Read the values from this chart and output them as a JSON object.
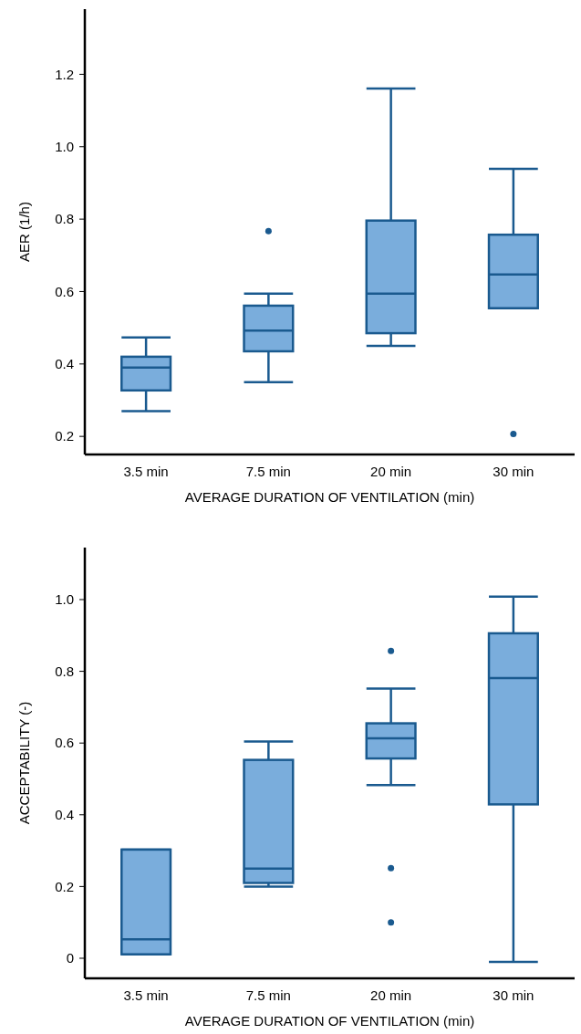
{
  "chart_data": [
    {
      "type": "box",
      "xlabel": "AVERAGE DURATION OF VENTILATION  (min)",
      "ylabel": "AER (1/h)",
      "categories": [
        "3.5 min",
        "7.5 min",
        "20 min",
        "30 min"
      ],
      "color": "#7aaddc",
      "ylim": [
        0.15,
        1.38
      ],
      "yticks": [
        {
          "value": 0.2,
          "label": "0.2"
        },
        {
          "value": 0.4,
          "label": "0.4"
        },
        {
          "value": 0.6,
          "label": "0.6"
        },
        {
          "value": 0.8,
          "label": "0.8"
        },
        {
          "value": 1.0,
          "label": "1.0"
        },
        {
          "value": 1.2,
          "label": "1.2"
        }
      ],
      "boxes": [
        {
          "low": 0.27,
          "q1": 0.327,
          "median": 0.39,
          "q3": 0.42,
          "high": 0.473
        },
        {
          "low": 0.35,
          "q1": 0.435,
          "median": 0.492,
          "q3": 0.561,
          "high": 0.594,
          "outliers": [
            0.767
          ]
        },
        {
          "low": 0.45,
          "q1": 0.485,
          "median": 0.594,
          "q3": 0.796,
          "high": 1.161
        },
        {
          "low": 0.554,
          "q1": 0.554,
          "median": 0.647,
          "q3": 0.757,
          "high": 0.939,
          "outliers": [
            0.207
          ]
        }
      ]
    },
    {
      "type": "box",
      "xlabel": "AVERAGE DURATION OF VENTILATION  (min)",
      "ylabel": "ACCEPTABILITY  (-)",
      "categories": [
        "3.5 min",
        "7.5 min",
        "20 min",
        "30 min"
      ],
      "color": "#7aaddc",
      "ylim": [
        -0.056,
        1.145
      ],
      "yticks": [
        0,
        {
          "value": 0.2,
          "label": "0.2"
        },
        {
          "value": 0.4,
          "label": "0.4"
        },
        {
          "value": 0.6,
          "label": "0.6"
        },
        {
          "value": 0.8,
          "label": "0.8"
        },
        {
          "value": 1.0,
          "label": "1.0"
        }
      ],
      "boxes": [
        {
          "low": 0.011,
          "q1": 0.011,
          "median": 0.053,
          "q3": 0.303,
          "high": 0.303
        },
        {
          "low": 0.2,
          "q1": 0.21,
          "median": 0.25,
          "q3": 0.553,
          "high": 0.604
        },
        {
          "low": 0.483,
          "q1": 0.557,
          "median": 0.613,
          "q3": 0.655,
          "high": 0.752,
          "outliers": [
            0.857,
            0.251,
            0.1
          ]
        },
        {
          "low": -0.01,
          "q1": 0.429,
          "median": 0.781,
          "q3": 0.906,
          "high": 1.008
        }
      ]
    }
  ]
}
